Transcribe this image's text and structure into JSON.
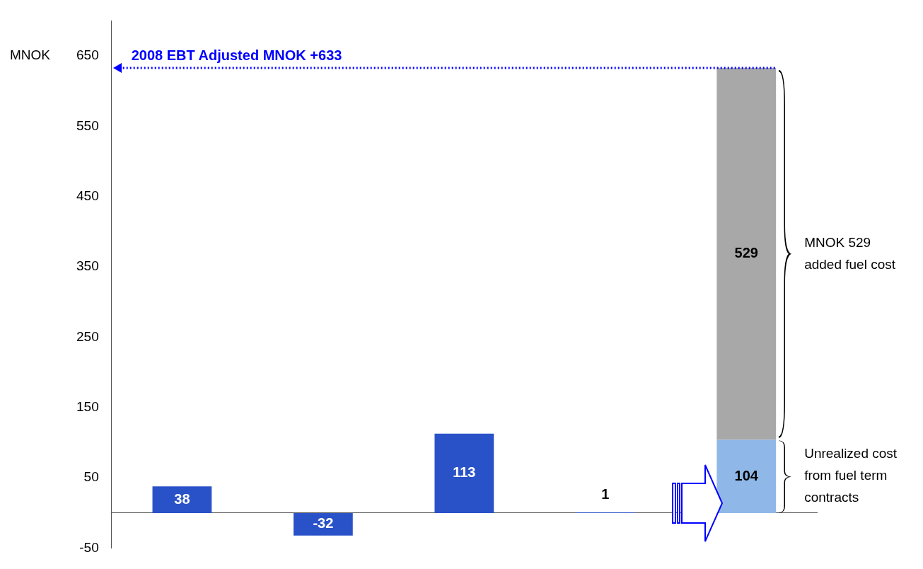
{
  "chart_data": {
    "type": "bar",
    "ylabel": "MNOK",
    "categories": [
      null,
      null,
      null,
      null,
      null
    ],
    "series": [
      {
        "color": "#2a52c8",
        "values": [
          38,
          -32,
          113,
          1,
          null
        ]
      },
      {
        "color": "#8fb8e8",
        "values": [
          null,
          null,
          null,
          null,
          104
        ]
      },
      {
        "color": "#a8a8a8",
        "values": [
          null,
          null,
          null,
          null,
          529
        ]
      }
    ],
    "stacked": true,
    "ylim": [
      -50,
      700
    ],
    "yticks": [
      -50,
      50,
      150,
      250,
      350,
      450,
      550,
      650
    ],
    "grid": false,
    "legend": false,
    "data_labels": true,
    "ref_lines": [
      {
        "axis": "y",
        "value": 633,
        "label": "2008 EBT Adjusted MNOK +633",
        "color": "#0000ff",
        "line_style": "dotted"
      }
    ],
    "annotations": [
      "MNOK 529 added fuel cost",
      "Unrealized cost from fuel term contracts"
    ]
  }
}
